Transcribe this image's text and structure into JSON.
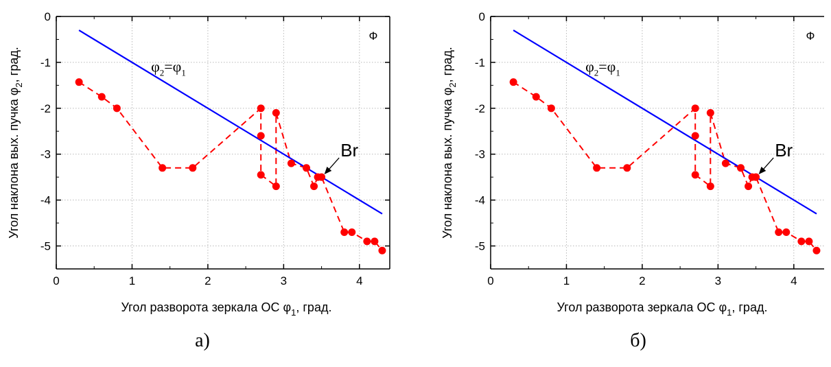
{
  "chart_data": [
    {
      "type": "line",
      "panel_label": "а)",
      "xlabel_main": "Угол разворота зеркала ОС φ",
      "xlabel_sub": "1",
      "xlabel_tail": ", град.",
      "ylabel_main": "Угол наклона вых. пучка φ",
      "ylabel_sub": "2",
      "ylabel_tail": ", град.",
      "xlim": [
        0,
        4.4
      ],
      "ylim": [
        -5.5,
        0
      ],
      "xticks": [
        0,
        1,
        2,
        3,
        4
      ],
      "yticks": [
        0,
        -1,
        -2,
        -3,
        -4,
        -5
      ],
      "grid": true,
      "symbol": "Ф",
      "annotation": {
        "base": "φ",
        "sub_left": "2",
        "eq": "=φ",
        "sub_right": "1"
      },
      "pointer_label": "Br",
      "series": [
        {
          "color": "#ff0000",
          "style": "dashed-markers",
          "x": [
            0.3,
            0.6,
            0.8,
            1.4,
            1.8,
            2.7,
            2.7,
            2.7,
            2.9,
            2.9,
            3.1,
            3.3,
            3.4,
            3.45,
            3.5,
            3.8,
            3.9,
            4.1,
            4.2,
            4.3
          ],
          "y": [
            -1.43,
            -1.75,
            -2.0,
            -3.3,
            -3.3,
            -2.0,
            -2.6,
            -3.45,
            -3.7,
            -2.1,
            -3.2,
            -3.3,
            -3.7,
            -3.5,
            -3.5,
            -4.7,
            -4.7,
            -4.9,
            -4.9,
            -5.1
          ]
        },
        {
          "color": "#0000ff",
          "style": "solid",
          "x": [
            0.3,
            4.3
          ],
          "y": [
            -0.3,
            -4.3
          ]
        }
      ],
      "pointer_target": [
        3.5,
        -3.5
      ]
    },
    {
      "type": "line",
      "panel_label": "б)",
      "xlabel_main": "Угол разворота зеркала ОС φ",
      "xlabel_sub": "1",
      "xlabel_tail": ", град.",
      "ylabel_main": "Угол наклона вых. пучка φ",
      "ylabel_sub": "2",
      "ylabel_tail": ", град.",
      "xlim": [
        0,
        4.4
      ],
      "ylim": [
        -5.5,
        0
      ],
      "xticks": [
        0,
        1,
        2,
        3,
        4
      ],
      "yticks": [
        0,
        -1,
        -2,
        -3,
        -4,
        -5
      ],
      "grid": true,
      "symbol": "Ф",
      "annotation": {
        "base": "φ",
        "sub_left": "2",
        "eq": "=φ",
        "sub_right": "1"
      },
      "pointer_label": "Br",
      "series": [
        {
          "color": "#ff0000",
          "style": "dashed-markers",
          "x": [
            0.3,
            0.6,
            0.8,
            1.4,
            1.8,
            2.7,
            2.7,
            2.7,
            2.9,
            2.9,
            3.1,
            3.3,
            3.4,
            3.45,
            3.5,
            3.8,
            3.9,
            4.1,
            4.2,
            4.3
          ],
          "y": [
            -1.43,
            -1.75,
            -2.0,
            -3.3,
            -3.3,
            -2.0,
            -2.6,
            -3.45,
            -3.7,
            -2.1,
            -3.2,
            -3.3,
            -3.7,
            -3.5,
            -3.5,
            -4.7,
            -4.7,
            -4.9,
            -4.9,
            -5.1
          ]
        },
        {
          "color": "#0000ff",
          "style": "solid",
          "x": [
            0.3,
            4.3
          ],
          "y": [
            -0.3,
            -4.3
          ]
        }
      ],
      "pointer_target": [
        3.5,
        -3.5
      ]
    }
  ]
}
